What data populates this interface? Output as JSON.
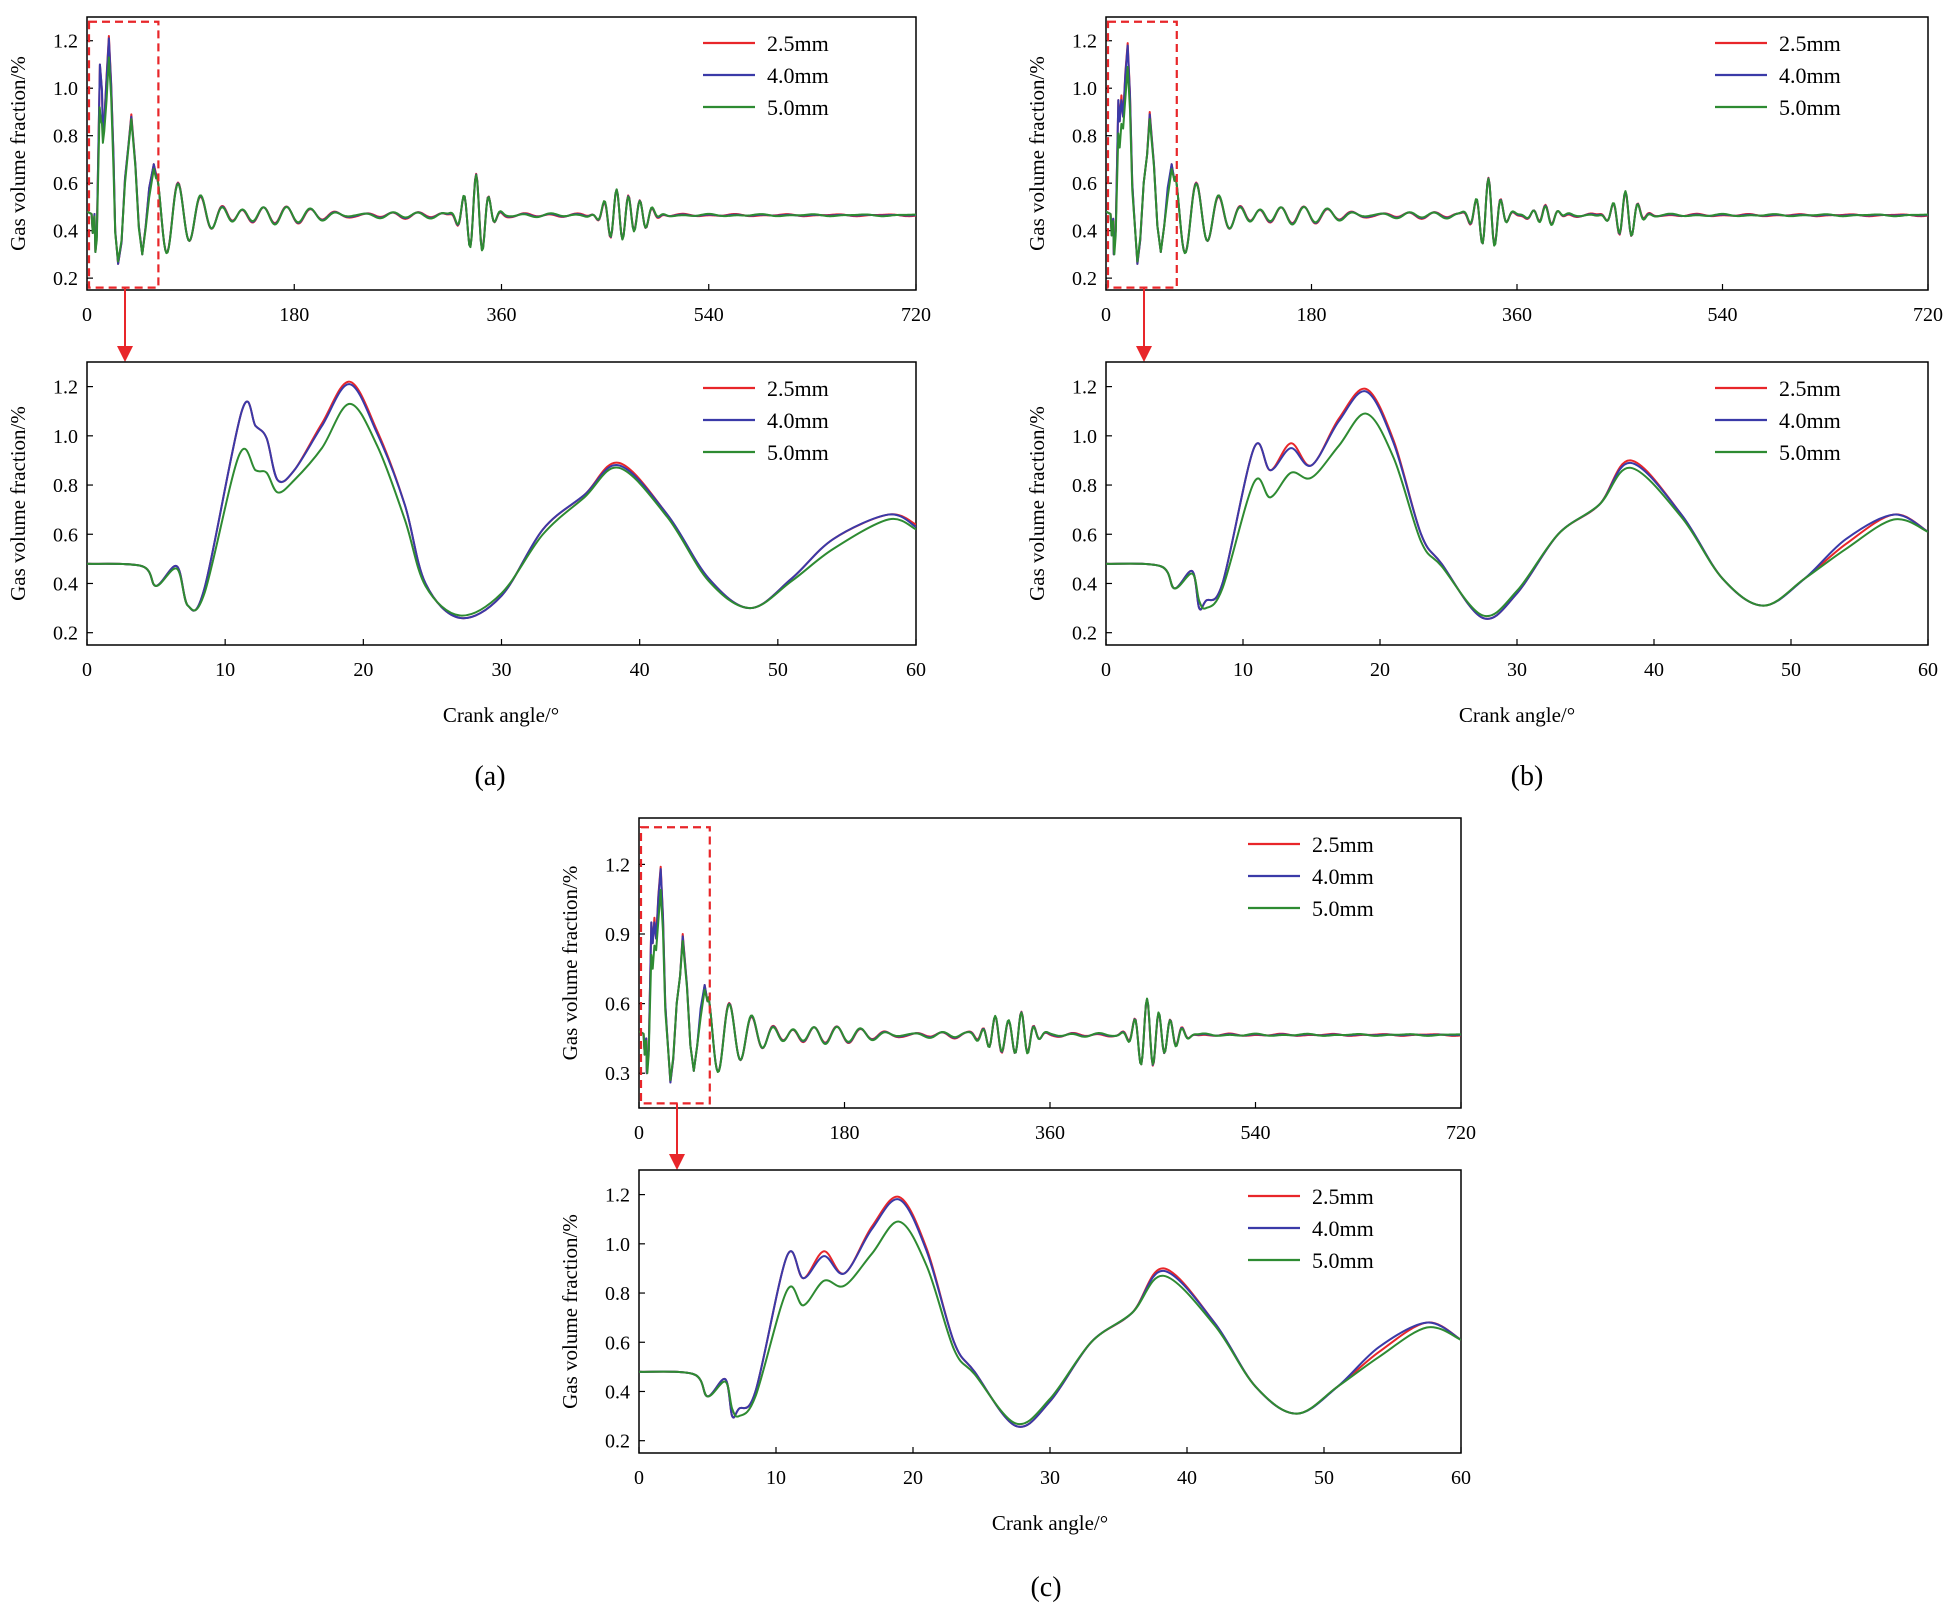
{
  "colors": {
    "2.5mm": "#e8262a",
    "4.0mm": "#3a3aa8",
    "5.0mm": "#2e8b32",
    "zoom_box": "#e8262a",
    "axis": "#000000"
  },
  "panels": [
    {
      "caption": "(a)",
      "variant": "a"
    },
    {
      "caption": "(b)",
      "variant": "b"
    },
    {
      "caption": "(c)",
      "variant": "c"
    }
  ],
  "chart_data": [
    {
      "panel": "a",
      "role": "overview",
      "type": "line",
      "title": "",
      "xlabel": "",
      "ylabel": "Gas volume fraction/%",
      "xlim": [
        0,
        720
      ],
      "ylim": [
        0.15,
        1.3
      ],
      "xticks": [
        0,
        180,
        360,
        540,
        720
      ],
      "yticks": [
        0.2,
        0.4,
        0.6,
        0.8,
        1.0,
        1.2
      ],
      "xtick_labels": [
        "0",
        "180",
        "360",
        "540",
        "720"
      ],
      "ytick_labels": [
        "0.2",
        "0.4",
        "0.6",
        "0.8",
        "1.0",
        "1.2"
      ],
      "legend": [
        "2.5mm",
        "4.0mm",
        "5.0mm"
      ],
      "legend_position": "top-right",
      "zoom_region": {
        "x": [
          0,
          62
        ],
        "y": [
          0.16,
          1.28
        ]
      }
    },
    {
      "panel": "a",
      "role": "zoom",
      "type": "line",
      "title": "",
      "xlabel": "Crank angle/°",
      "ylabel": "Gas volume fraction/%",
      "xlim": [
        0,
        60
      ],
      "ylim": [
        0.15,
        1.3
      ],
      "xticks": [
        0,
        10,
        20,
        30,
        40,
        50,
        60
      ],
      "yticks": [
        0.2,
        0.4,
        0.6,
        0.8,
        1.0,
        1.2
      ],
      "xtick_labels": [
        "0",
        "10",
        "20",
        "30",
        "40",
        "50",
        "60"
      ],
      "ytick_labels": [
        "0.2",
        "0.4",
        "0.6",
        "0.8",
        "1.0",
        "1.2"
      ],
      "legend": [
        "2.5mm",
        "4.0mm",
        "5.0mm"
      ],
      "legend_position": "top-right",
      "series": [
        {
          "name": "2.5mm",
          "x": [
            0,
            4,
            5,
            6.5,
            7.3,
            8.5,
            11.2,
            12.2,
            13,
            13.8,
            15,
            17,
            19,
            21,
            23,
            24.5,
            27,
            30,
            33,
            36,
            38.5,
            42,
            45,
            48,
            51,
            54,
            58,
            60
          ],
          "y": [
            0.48,
            0.47,
            0.39,
            0.47,
            0.31,
            0.38,
            1.1,
            1.04,
            0.99,
            0.82,
            0.86,
            1.05,
            1.22,
            1.02,
            0.72,
            0.4,
            0.26,
            0.35,
            0.62,
            0.76,
            0.89,
            0.68,
            0.42,
            0.3,
            0.42,
            0.58,
            0.68,
            0.64
          ]
        },
        {
          "name": "4.0mm",
          "x": [
            0,
            4,
            5,
            6.5,
            7.3,
            8.5,
            11.2,
            12.2,
            13,
            13.8,
            15,
            17,
            19,
            21,
            23,
            24.5,
            27,
            30,
            33,
            36,
            38.5,
            42,
            45,
            48,
            51,
            54,
            58,
            60
          ],
          "y": [
            0.48,
            0.47,
            0.39,
            0.47,
            0.31,
            0.38,
            1.1,
            1.04,
            0.99,
            0.82,
            0.86,
            1.04,
            1.21,
            1.01,
            0.72,
            0.4,
            0.26,
            0.35,
            0.62,
            0.76,
            0.88,
            0.68,
            0.42,
            0.3,
            0.42,
            0.58,
            0.68,
            0.63
          ]
        },
        {
          "name": "5.0mm",
          "x": [
            0,
            4,
            5,
            6.5,
            7.3,
            8.5,
            11,
            12.2,
            13,
            13.8,
            15,
            17,
            19,
            21,
            23,
            24.5,
            27,
            30,
            33,
            36,
            38.5,
            42,
            45,
            48,
            51,
            54,
            58,
            60
          ],
          "y": [
            0.48,
            0.47,
            0.39,
            0.46,
            0.31,
            0.36,
            0.92,
            0.86,
            0.85,
            0.77,
            0.82,
            0.95,
            1.13,
            0.96,
            0.66,
            0.39,
            0.27,
            0.36,
            0.6,
            0.75,
            0.87,
            0.67,
            0.41,
            0.3,
            0.41,
            0.54,
            0.66,
            0.62
          ]
        }
      ]
    },
    {
      "panel": "b",
      "role": "overview",
      "type": "line",
      "title": "",
      "xlabel": "",
      "ylabel": "Gas volume fraction/%",
      "xlim": [
        0,
        720
      ],
      "ylim": [
        0.15,
        1.3
      ],
      "xticks": [
        0,
        180,
        360,
        540,
        720
      ],
      "yticks": [
        0.2,
        0.4,
        0.6,
        0.8,
        1.0,
        1.2
      ],
      "xtick_labels": [
        "0",
        "180",
        "360",
        "540",
        "720"
      ],
      "ytick_labels": [
        "0.2",
        "0.4",
        "0.6",
        "0.8",
        "1.0",
        "1.2"
      ],
      "legend": [
        "2.5mm",
        "4.0mm",
        "5.0mm"
      ],
      "legend_position": "top-right",
      "zoom_region": {
        "x": [
          0,
          62
        ],
        "y": [
          0.16,
          1.28
        ]
      }
    },
    {
      "panel": "b",
      "role": "zoom",
      "type": "line",
      "title": "",
      "xlabel": "Crank angle/°",
      "ylabel": "Gas volume fraction/%",
      "xlim": [
        0,
        60
      ],
      "ylim": [
        0.15,
        1.3
      ],
      "xticks": [
        0,
        10,
        20,
        30,
        40,
        50,
        60
      ],
      "yticks": [
        0.2,
        0.4,
        0.6,
        0.8,
        1.0,
        1.2
      ],
      "xtick_labels": [
        "0",
        "10",
        "20",
        "30",
        "40",
        "50",
        "60"
      ],
      "ytick_labels": [
        "0.2",
        "0.4",
        "0.6",
        "0.8",
        "1.0",
        "1.2"
      ],
      "legend": [
        "2.5mm",
        "4.0mm",
        "5.0mm"
      ],
      "legend_position": "top-right",
      "series": [
        {
          "name": "2.5mm",
          "x": [
            0,
            4,
            5,
            6.3,
            6.8,
            7.3,
            8.5,
            10.8,
            12,
            13.5,
            15,
            17,
            19,
            21,
            23,
            24.5,
            27.5,
            30,
            33,
            36,
            38.3,
            42,
            45,
            48,
            51,
            54,
            57.5,
            60
          ],
          "y": [
            0.48,
            0.47,
            0.38,
            0.45,
            0.3,
            0.33,
            0.4,
            0.95,
            0.86,
            0.97,
            0.88,
            1.07,
            1.19,
            0.98,
            0.6,
            0.48,
            0.26,
            0.36,
            0.6,
            0.72,
            0.9,
            0.68,
            0.42,
            0.31,
            0.42,
            0.56,
            0.68,
            0.61
          ]
        },
        {
          "name": "4.0mm",
          "x": [
            0,
            4,
            5,
            6.3,
            6.8,
            7.3,
            8.5,
            10.8,
            12,
            13.5,
            15,
            17,
            19,
            21,
            23,
            24.5,
            27.5,
            30,
            33,
            36,
            38.3,
            42,
            45,
            48,
            51,
            54,
            57.5,
            60
          ],
          "y": [
            0.48,
            0.47,
            0.38,
            0.45,
            0.3,
            0.33,
            0.4,
            0.95,
            0.86,
            0.95,
            0.88,
            1.06,
            1.18,
            0.97,
            0.6,
            0.48,
            0.26,
            0.36,
            0.6,
            0.72,
            0.89,
            0.68,
            0.42,
            0.31,
            0.42,
            0.58,
            0.68,
            0.61
          ]
        },
        {
          "name": "5.0mm",
          "x": [
            0,
            4,
            5,
            6.3,
            6.8,
            7.3,
            8.5,
            10.8,
            12,
            13.5,
            15,
            17,
            19,
            21,
            23,
            24.5,
            27.5,
            30,
            33,
            36,
            38.3,
            42,
            45,
            48,
            51,
            54,
            57.5,
            60
          ],
          "y": [
            0.48,
            0.47,
            0.38,
            0.44,
            0.33,
            0.3,
            0.38,
            0.81,
            0.75,
            0.85,
            0.83,
            0.96,
            1.09,
            0.91,
            0.57,
            0.47,
            0.27,
            0.37,
            0.6,
            0.72,
            0.87,
            0.67,
            0.42,
            0.31,
            0.42,
            0.54,
            0.66,
            0.61
          ]
        }
      ]
    },
    {
      "panel": "c",
      "role": "overview",
      "type": "line",
      "title": "",
      "xlabel": "",
      "ylabel": "Gas volume fraction/%",
      "xlim": [
        0,
        720
      ],
      "ylim": [
        0.15,
        1.4
      ],
      "xticks": [
        0,
        180,
        360,
        540,
        720
      ],
      "yticks": [
        0.3,
        0.6,
        0.9,
        1.2
      ],
      "xtick_labels": [
        "0",
        "180",
        "360",
        "540",
        "720"
      ],
      "ytick_labels": [
        "0.3",
        "0.6",
        "0.9",
        "1.2"
      ],
      "legend": [
        "2.5mm",
        "4.0mm",
        "5.0mm"
      ],
      "legend_position": "top-right",
      "zoom_region": {
        "x": [
          0,
          62
        ],
        "y": [
          0.17,
          1.36
        ]
      }
    },
    {
      "panel": "c",
      "role": "zoom",
      "type": "line",
      "title": "",
      "xlabel": "Crank angle/°",
      "ylabel": "Gas volume fraction/%",
      "xlim": [
        0,
        60
      ],
      "ylim": [
        0.15,
        1.3
      ],
      "xticks": [
        0,
        10,
        20,
        30,
        40,
        50,
        60
      ],
      "yticks": [
        0.2,
        0.4,
        0.6,
        0.8,
        1.0,
        1.2
      ],
      "xtick_labels": [
        "0",
        "10",
        "20",
        "30",
        "40",
        "50",
        "60"
      ],
      "ytick_labels": [
        "0.2",
        "0.4",
        "0.6",
        "0.8",
        "1.0",
        "1.2"
      ],
      "legend": [
        "2.5mm",
        "4.0mm",
        "5.0mm"
      ],
      "legend_position": "top-right",
      "series": [
        {
          "name": "2.5mm",
          "x": [
            0,
            4,
            5,
            6.3,
            6.8,
            7.3,
            8.5,
            10.8,
            12,
            13.5,
            15,
            17,
            19,
            21,
            23,
            24.5,
            27.5,
            30,
            33,
            36,
            38.3,
            42,
            45,
            48,
            51,
            54,
            57.5,
            60
          ],
          "y": [
            0.48,
            0.47,
            0.38,
            0.45,
            0.3,
            0.33,
            0.4,
            0.95,
            0.86,
            0.97,
            0.88,
            1.07,
            1.19,
            0.98,
            0.6,
            0.48,
            0.26,
            0.36,
            0.6,
            0.72,
            0.9,
            0.68,
            0.42,
            0.31,
            0.42,
            0.56,
            0.68,
            0.61
          ]
        },
        {
          "name": "4.0mm",
          "x": [
            0,
            4,
            5,
            6.3,
            6.8,
            7.3,
            8.5,
            10.8,
            12,
            13.5,
            15,
            17,
            19,
            21,
            23,
            24.5,
            27.5,
            30,
            33,
            36,
            38.3,
            42,
            45,
            48,
            51,
            54,
            57.5,
            60
          ],
          "y": [
            0.48,
            0.47,
            0.38,
            0.45,
            0.3,
            0.33,
            0.4,
            0.95,
            0.86,
            0.95,
            0.88,
            1.06,
            1.18,
            0.97,
            0.6,
            0.48,
            0.26,
            0.36,
            0.6,
            0.72,
            0.89,
            0.68,
            0.42,
            0.31,
            0.42,
            0.58,
            0.68,
            0.61
          ]
        },
        {
          "name": "5.0mm",
          "x": [
            0,
            4,
            5,
            6.3,
            6.8,
            7.3,
            8.5,
            10.8,
            12,
            13.5,
            15,
            17,
            19,
            21,
            23,
            24.5,
            27.5,
            30,
            33,
            36,
            38.3,
            42,
            45,
            48,
            51,
            54,
            57.5,
            60
          ],
          "y": [
            0.48,
            0.47,
            0.38,
            0.44,
            0.33,
            0.3,
            0.38,
            0.81,
            0.75,
            0.85,
            0.83,
            0.96,
            1.09,
            0.91,
            0.57,
            0.47,
            0.27,
            0.37,
            0.6,
            0.72,
            0.87,
            0.67,
            0.42,
            0.31,
            0.42,
            0.54,
            0.66,
            0.61
          ]
        }
      ]
    }
  ]
}
